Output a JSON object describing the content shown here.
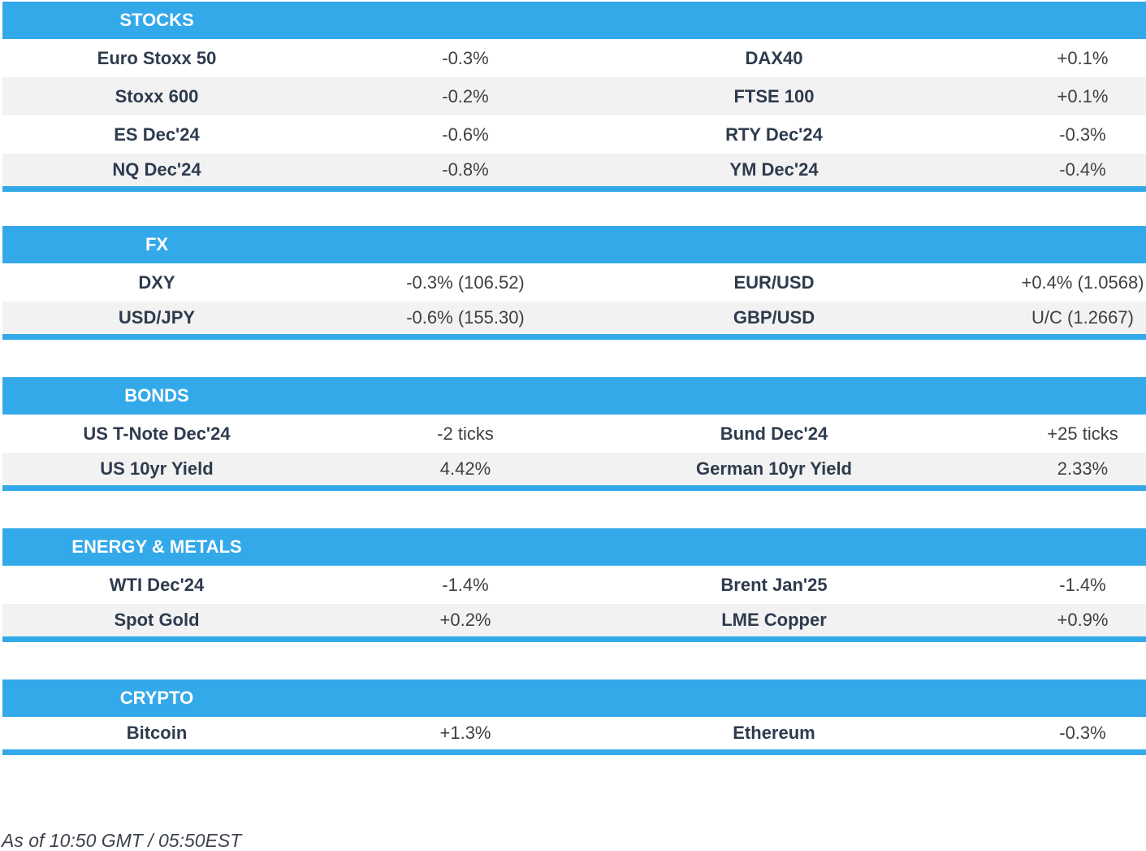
{
  "colors": {
    "accent": "#33a9ea",
    "row_stripe": "#f2f2f2",
    "label_text": "#2e3b4e",
    "value_text": "#3f3f3f",
    "header_text": "#ffffff"
  },
  "sections": [
    {
      "title": "STOCKS",
      "rows": [
        [
          "Euro Stoxx 50",
          "-0.3%",
          "DAX40",
          "+0.1%"
        ],
        [
          "Stoxx 600",
          "-0.2%",
          "FTSE 100",
          "+0.1%"
        ],
        [
          "ES Dec'24",
          "-0.6%",
          "RTY Dec'24",
          "-0.3%"
        ],
        [
          "NQ Dec'24",
          "-0.8%",
          "YM Dec'24",
          "-0.4%"
        ]
      ]
    },
    {
      "title": "FX",
      "rows": [
        [
          "DXY",
          "-0.3% (106.52)",
          "EUR/USD",
          "+0.4% (1.0568)"
        ],
        [
          "USD/JPY",
          "-0.6% (155.30)",
          "GBP/USD",
          "U/C (1.2667)"
        ]
      ]
    },
    {
      "title": "BONDS",
      "rows": [
        [
          "US T-Note Dec'24",
          "-2 ticks",
          "Bund Dec'24",
          "+25 ticks"
        ],
        [
          "US 10yr Yield",
          "4.42%",
          "German 10yr Yield",
          "2.33%"
        ]
      ]
    },
    {
      "title": "ENERGY & METALS",
      "rows": [
        [
          "WTI Dec'24",
          "-1.4%",
          "Brent Jan'25",
          "-1.4%"
        ],
        [
          "Spot Gold",
          "+0.2%",
          "LME Copper",
          "+0.9%"
        ]
      ]
    },
    {
      "title": "CRYPTO",
      "rows": [
        [
          "Bitcoin",
          "+1.3%",
          "Ethereum",
          "-0.3%"
        ]
      ]
    }
  ],
  "footer": {
    "as_of": "As of 10:50 GMT / 05:50EST"
  }
}
